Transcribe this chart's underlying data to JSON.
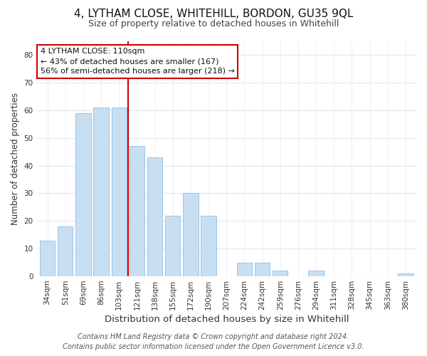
{
  "title": "4, LYTHAM CLOSE, WHITEHILL, BORDON, GU35 9QL",
  "subtitle": "Size of property relative to detached houses in Whitehill",
  "xlabel": "Distribution of detached houses by size in Whitehill",
  "ylabel": "Number of detached properties",
  "bar_labels": [
    "34sqm",
    "51sqm",
    "69sqm",
    "86sqm",
    "103sqm",
    "121sqm",
    "138sqm",
    "155sqm",
    "172sqm",
    "190sqm",
    "207sqm",
    "224sqm",
    "242sqm",
    "259sqm",
    "276sqm",
    "294sqm",
    "311sqm",
    "328sqm",
    "345sqm",
    "363sqm",
    "380sqm"
  ],
  "bar_values": [
    13,
    18,
    59,
    61,
    61,
    47,
    43,
    22,
    30,
    22,
    0,
    5,
    5,
    2,
    0,
    2,
    0,
    0,
    0,
    0,
    1
  ],
  "bar_color": "#c8dff2",
  "bar_edgecolor": "#9dc3e6",
  "vline_x": 4.5,
  "vline_color": "#cc0000",
  "ylim": [
    0,
    85
  ],
  "yticks": [
    0,
    10,
    20,
    30,
    40,
    50,
    60,
    70,
    80
  ],
  "annotation_title": "4 LYTHAM CLOSE: 110sqm",
  "annotation_line1": "← 43% of detached houses are smaller (167)",
  "annotation_line2": "56% of semi-detached houses are larger (218) →",
  "annotation_box_facecolor": "#ffffff",
  "annotation_box_edgecolor": "#cc0000",
  "footer_line1": "Contains HM Land Registry data © Crown copyright and database right 2024.",
  "footer_line2": "Contains public sector information licensed under the Open Government Licence v3.0.",
  "background_color": "#ffffff",
  "plot_bg_color": "#ffffff",
  "grid_color": "#e0e8f0",
  "title_fontsize": 11,
  "subtitle_fontsize": 9,
  "xlabel_fontsize": 9.5,
  "ylabel_fontsize": 8.5,
  "tick_fontsize": 7.5,
  "annot_fontsize": 8,
  "footer_fontsize": 7
}
